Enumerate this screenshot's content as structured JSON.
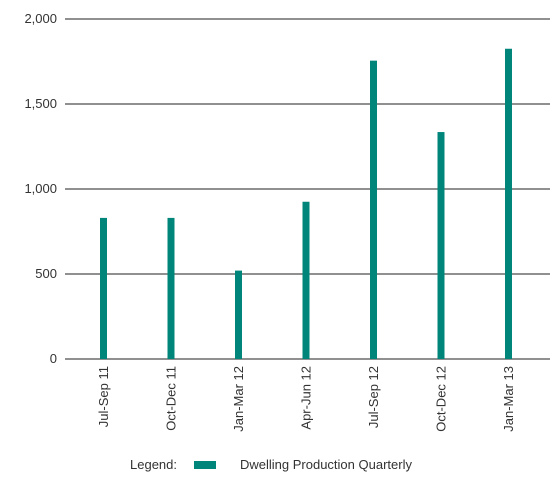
{
  "chart_data": {
    "type": "bar",
    "categories": [
      "Jul-Sep 11",
      "Oct-Dec 11",
      "Jan-Mar 12",
      "Apr-Jun 12",
      "Jul-Sep 12",
      "Oct-Dec 12",
      "Jan-Mar 13"
    ],
    "series": [
      {
        "name": "Dwelling Production Quarterly",
        "values": [
          830,
          830,
          520,
          925,
          1755,
          1335,
          1825
        ]
      }
    ],
    "ylim": [
      0,
      2000
    ],
    "yticks": [
      "0",
      "500",
      "1,000",
      "1,500",
      "2,000"
    ],
    "ytick_values": [
      0,
      500,
      1000,
      1500,
      2000
    ],
    "grid": true,
    "legend_title": "Legend:",
    "legend_position": "bottom",
    "bar_color": "#00857a",
    "grid_color": "#222222"
  }
}
